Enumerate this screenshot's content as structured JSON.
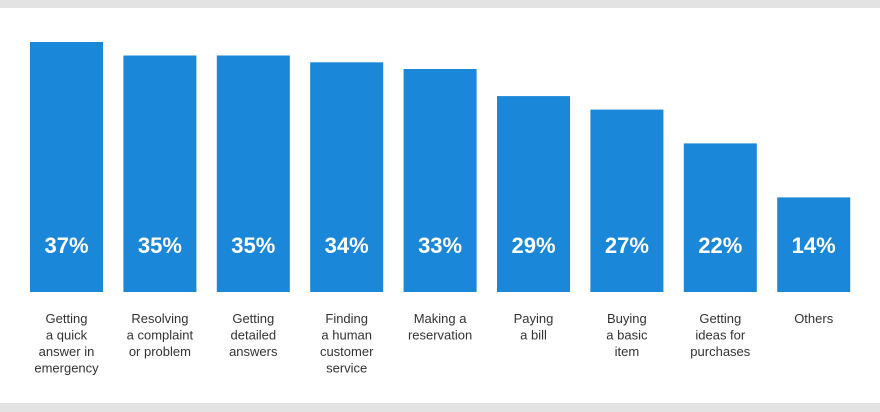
{
  "colors": {
    "bar": "#1b87d8",
    "background": "#ffffff",
    "band": "#e3e3e3",
    "label_text": "#333333",
    "value_text": "#ffffff"
  },
  "chart_data": {
    "type": "bar",
    "title": "",
    "xlabel": "",
    "ylabel": "",
    "ylim": [
      0,
      37
    ],
    "grid": false,
    "legend": "none",
    "value_suffix": "%",
    "categories": [
      "Getting a quick answer in emergency",
      "Resolving a complaint or problem",
      "Getting detailed answers",
      "Finding a human customer service",
      "Making a reservation",
      "Paying a bill",
      "Buying a basic item",
      "Getting ideas for purchases",
      "Others"
    ],
    "category_lines": [
      [
        "Getting",
        "a quick",
        "answer in",
        "emergency"
      ],
      [
        "Resolving",
        "a complaint",
        "or problem"
      ],
      [
        "Getting",
        "detailed",
        "answers"
      ],
      [
        "Finding",
        "a human",
        "customer",
        "service"
      ],
      [
        "Making a",
        "reservation"
      ],
      [
        "Paying",
        "a bill"
      ],
      [
        "Buying",
        "a basic",
        "item"
      ],
      [
        "Getting",
        "ideas for",
        "purchases"
      ],
      [
        "Others"
      ]
    ],
    "values": [
      37,
      35,
      35,
      34,
      33,
      29,
      27,
      22,
      14
    ],
    "value_labels": [
      "37%",
      "35%",
      "35%",
      "34%",
      "33%",
      "29%",
      "27%",
      "22%",
      "14%"
    ]
  }
}
